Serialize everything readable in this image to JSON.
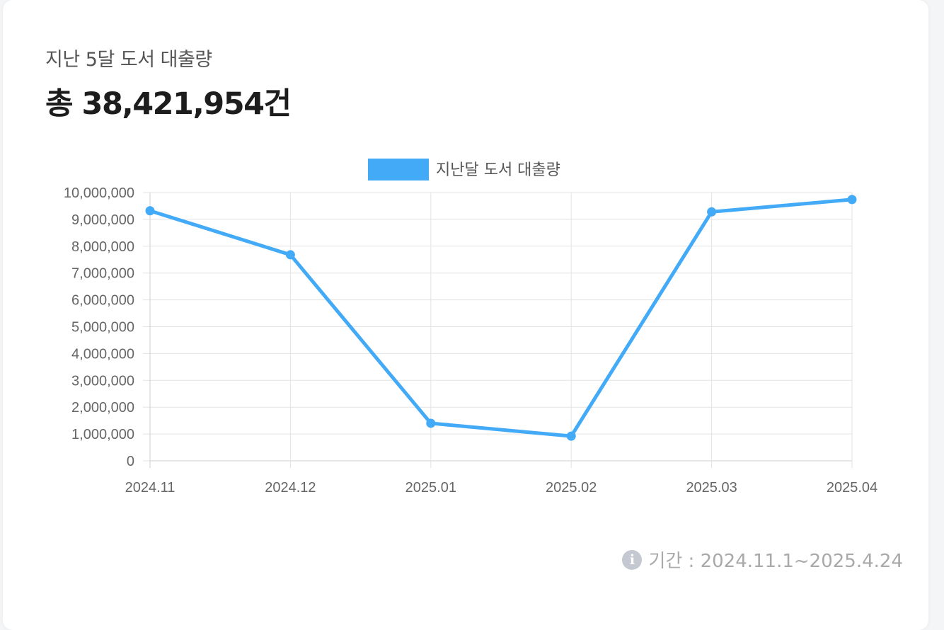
{
  "header": {
    "subtitle": "지난 5달 도서 대출량",
    "total": "총 38,421,954건"
  },
  "footer": {
    "period_text": "기간 : 2024.11.1~2025.4.24"
  },
  "colors": {
    "series": "#42aaf7",
    "grid": "#e3e3e3",
    "tick_text": "#666666"
  },
  "chart_data": {
    "type": "line",
    "categories": [
      "2024.11",
      "2024.12",
      "2025.01",
      "2025.02",
      "2025.03",
      "2025.04"
    ],
    "series": [
      {
        "name": "지난달 도서 대출량",
        "values": [
          9320000,
          7680000,
          1400000,
          920000,
          9280000,
          9740000
        ]
      }
    ],
    "ylim": [
      0,
      10000000
    ],
    "ytick_step": 1000000,
    "ytick_labels": [
      "0",
      "1,000,000",
      "2,000,000",
      "3,000,000",
      "4,000,000",
      "5,000,000",
      "6,000,000",
      "7,000,000",
      "8,000,000",
      "9,000,000",
      "10,000,000"
    ],
    "grid": true,
    "legend": "top-center"
  }
}
